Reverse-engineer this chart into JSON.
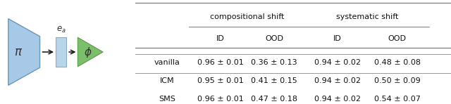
{
  "table": {
    "row_labels": [
      "vanilla",
      "ICM",
      "SMS"
    ],
    "col_groups": [
      "compositional shift",
      "systematic shift"
    ],
    "col_labels": [
      "ID",
      "OOD",
      "ID",
      "OOD"
    ],
    "cells": [
      [
        "0.96 ± 0.01",
        "0.36 ± 0.13",
        "0.94 ± 0.02",
        "0.48 ± 0.08"
      ],
      [
        "0.95 ± 0.01",
        "0.41 ± 0.15",
        "0.94 ± 0.02",
        "0.50 ± 0.09"
      ],
      [
        "0.96 ± 0.01",
        "0.47 ± 0.18",
        "0.94 ± 0.02",
        "0.54 ± 0.07"
      ]
    ]
  },
  "diagram": {
    "pi_color": "#a8c8e8",
    "pi_edge": "#6699bb",
    "ea_color": "#b8d4e8",
    "ea_edge": "#88aacc",
    "phi_color": "#7bbf6a",
    "phi_edge": "#5a9a4a",
    "arrow_color": "#111111"
  },
  "bg_color": "#ffffff",
  "font_size": 8.0,
  "line_color": "#888888"
}
